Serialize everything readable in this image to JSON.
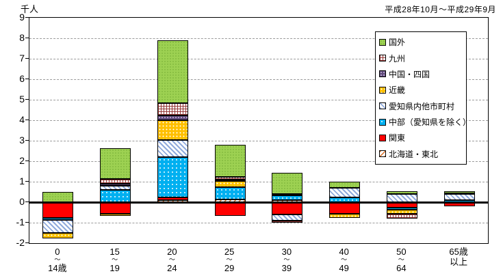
{
  "header": {
    "unit_label": "千人",
    "period_label": "平成28年10月～平成29年9月"
  },
  "chart_data": {
    "type": "bar",
    "stacked": true,
    "title": "",
    "xlabel": "",
    "ylabel": "千人",
    "ylim": [
      -2,
      9
    ],
    "ytick_step": 1,
    "yticks": [
      "9",
      "8",
      "7",
      "6",
      "5",
      "4",
      "3",
      "2",
      "1",
      "0",
      "-1",
      "-2"
    ],
    "grid": true,
    "zero_axis_bold": true,
    "legend_position": "inside-upper-right",
    "categories": [
      "0～14歳",
      "15～19",
      "20～24",
      "25～29",
      "30～39",
      "40～49",
      "50～64",
      "65歳以上"
    ],
    "category_label_lines": [
      [
        "0",
        "～",
        "14歳"
      ],
      [
        "15",
        "～",
        "19"
      ],
      [
        "20",
        "～",
        "24"
      ],
      [
        "25",
        "～",
        "29"
      ],
      [
        "30",
        "～",
        "39"
      ],
      [
        "40",
        "～",
        "49"
      ],
      [
        "50",
        "～",
        "64"
      ],
      [
        "65歳",
        "以上"
      ]
    ],
    "series": [
      {
        "key": "hokkaido-tohoku",
        "name": "北海道・東北",
        "pattern": "diagonal-hatch-orange",
        "color": "#d86b1f",
        "values": [
          0,
          0,
          0.1,
          0.15,
          0.1,
          0,
          0,
          0
        ]
      },
      {
        "key": "kanto",
        "name": "関東",
        "pattern": "solid-red",
        "color": "#ff0000",
        "values": [
          -0.75,
          -0.55,
          0.15,
          -0.65,
          -0.6,
          -0.55,
          -0.25,
          -0.2
        ]
      },
      {
        "key": "chubu",
        "name": "中部（愛知県を除く）",
        "pattern": "dots-cyan",
        "color": "#00b0f0",
        "values": [
          -0.1,
          0.6,
          1.95,
          0.6,
          0.25,
          0.25,
          -0.1,
          0.1
        ]
      },
      {
        "key": "aichi",
        "name": "愛知県内他市町村",
        "pattern": "diagonal-hatch-blue",
        "color": "#8faadc",
        "values": [
          -0.65,
          0.2,
          0.85,
          0,
          -0.3,
          0.45,
          0.4,
          0.3
        ]
      },
      {
        "key": "kinki",
        "name": "近畿",
        "pattern": "dots-orange",
        "color": "#ffc000",
        "values": [
          -0.25,
          -0.1,
          0.95,
          0.3,
          0,
          -0.2,
          -0.2,
          0
        ]
      },
      {
        "key": "chugoku-shikoku",
        "name": "中国・四国",
        "pattern": "dots-purple",
        "color": "#604a7b",
        "values": [
          0,
          0.1,
          0.25,
          0.05,
          0.05,
          0,
          0,
          0
        ]
      },
      {
        "key": "kyushu",
        "name": "九州",
        "pattern": "crosshatch-darkred",
        "color": "#943634",
        "values": [
          0,
          0.25,
          0.6,
          0.15,
          -0.1,
          0,
          -0.25,
          0.05
        ]
      },
      {
        "key": "kokugai",
        "name": "国外",
        "pattern": "dots-green",
        "color": "#92d050",
        "values": [
          0.5,
          1.5,
          3.05,
          1.55,
          1.05,
          0.3,
          0.15,
          0.1
        ]
      }
    ],
    "legend_order_top_to_bottom": [
      "国外",
      "九州",
      "中国・四国",
      "近畿",
      "愛知県内他市町村",
      "中部（愛知県を除く）",
      "関東",
      "北海道・東北"
    ]
  }
}
